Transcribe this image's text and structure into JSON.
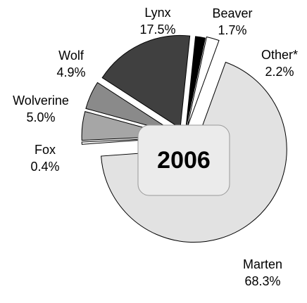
{
  "chart_data": {
    "type": "pie",
    "center_label": "2006",
    "categories": [
      "Marten",
      "Fox",
      "Wolverine",
      "Wolf",
      "Lynx",
      "Beaver",
      "Other*"
    ],
    "values": [
      68.3,
      0.4,
      5.0,
      4.9,
      17.5,
      1.7,
      2.2
    ],
    "value_labels": [
      "68.3%",
      "0.4%",
      "5.0%",
      "4.9%",
      "17.5%",
      "1.7%",
      "2.2%"
    ],
    "colors": [
      "#e2e2e2",
      "#ffffff",
      "#a6a6a6",
      "#8a8a8a",
      "#404040",
      "#000000",
      "#ffffff"
    ]
  }
}
